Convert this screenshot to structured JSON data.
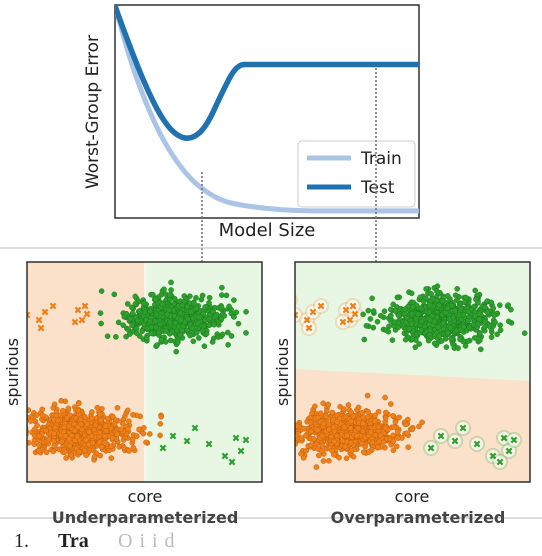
{
  "top_chart": {
    "ylabel": "Worst-Group Error",
    "xlabel": "Model Size",
    "legend": [
      "Train",
      "Test"
    ]
  },
  "panels": [
    {
      "title": "Underparameterized",
      "xlabel": "core",
      "ylabel": "spurious"
    },
    {
      "title": "Overparameterized",
      "xlabel": "core",
      "ylabel": "spurious"
    }
  ],
  "caption": {
    "num": "1.",
    "bold": "Tra",
    "rest": "O              i    i   d"
  },
  "colors": {
    "train": "#aac4e6",
    "test": "#2171b0",
    "orange_points": "#f07f17",
    "green_points": "#2ca02c",
    "orange_region": "#fbe1c9",
    "green_region": "#e7f7e3",
    "separator": "#888888"
  },
  "chart_data": [
    {
      "type": "line",
      "title": "",
      "xlabel": "Model Size",
      "ylabel": "Worst-Group Error",
      "legend_position": "lower-right",
      "series": [
        {
          "name": "Train",
          "x": [
            0,
            0.05,
            0.1,
            0.15,
            0.2,
            0.25,
            0.3,
            0.35,
            0.4,
            0.5,
            0.6,
            0.7,
            0.8,
            0.9,
            1.0
          ],
          "y": [
            1.0,
            0.74,
            0.54,
            0.38,
            0.26,
            0.17,
            0.11,
            0.07,
            0.05,
            0.03,
            0.02,
            0.02,
            0.02,
            0.02,
            0.02
          ]
        },
        {
          "name": "Test",
          "x": [
            0,
            0.05,
            0.1,
            0.15,
            0.2,
            0.25,
            0.3,
            0.35,
            0.4,
            0.45,
            0.5,
            0.6,
            0.7,
            0.8,
            0.9,
            1.0
          ],
          "y": [
            1.0,
            0.8,
            0.62,
            0.47,
            0.38,
            0.36,
            0.42,
            0.58,
            0.72,
            0.72,
            0.72,
            0.72,
            0.72,
            0.72,
            0.72,
            0.72
          ]
        }
      ],
      "grid": false
    },
    {
      "type": "scatter",
      "title": "Underparameterized",
      "xlabel": "core",
      "ylabel": "spurious",
      "series": [
        {
          "name": "",
          "group": "majority-orange"
        },
        {
          "name": "",
          "group": "majority-green"
        },
        {
          "name": "",
          "group": "minority-orange"
        },
        {
          "name": "",
          "group": "minority-green"
        }
      ],
      "decision_boundary": "vertical"
    },
    {
      "type": "scatter",
      "title": "Overparameterized",
      "xlabel": "core",
      "ylabel": "spurious",
      "series": [
        {
          "name": "",
          "group": "majority-orange"
        },
        {
          "name": "",
          "group": "majority-green"
        },
        {
          "name": "",
          "group": "minority-orange"
        },
        {
          "name": "",
          "group": "minority-green"
        }
      ],
      "decision_boundary": "tilted-horizontal"
    }
  ]
}
